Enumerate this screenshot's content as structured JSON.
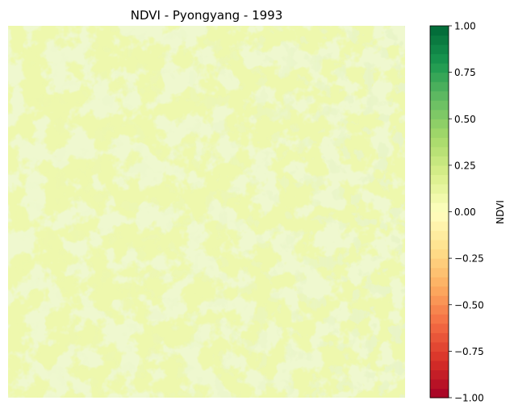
{
  "chart_data": {
    "type": "heatmap",
    "title": "NDVI - Pyongyang - 1993",
    "colorbar": {
      "label": "NDVI",
      "range": [
        -1.0,
        1.0
      ],
      "ticks": [
        1.0,
        0.75,
        0.5,
        0.25,
        0.0,
        -0.25,
        -0.5,
        -0.75,
        -1.0
      ],
      "tick_labels": [
        "1.00",
        "0.75",
        "0.50",
        "0.25",
        "0.00",
        "−0.25",
        "−0.50",
        "−0.75",
        "−1.00"
      ],
      "colormap": "RdYlGn",
      "levels": 40,
      "stops": [
        "#a50026",
        "#d73027",
        "#f46d43",
        "#fdae61",
        "#fee08b",
        "#ffffbf",
        "#d9ef8b",
        "#a6d96a",
        "#66bd63",
        "#1a9850",
        "#006837"
      ]
    },
    "image": {
      "axis": "off",
      "typical_ndvi": [
        0.05,
        0.25
      ],
      "base_color": "#eef8ad",
      "vegetation_color": "#dcefa0",
      "dense_vegetation_color": "#cfe792"
    }
  }
}
